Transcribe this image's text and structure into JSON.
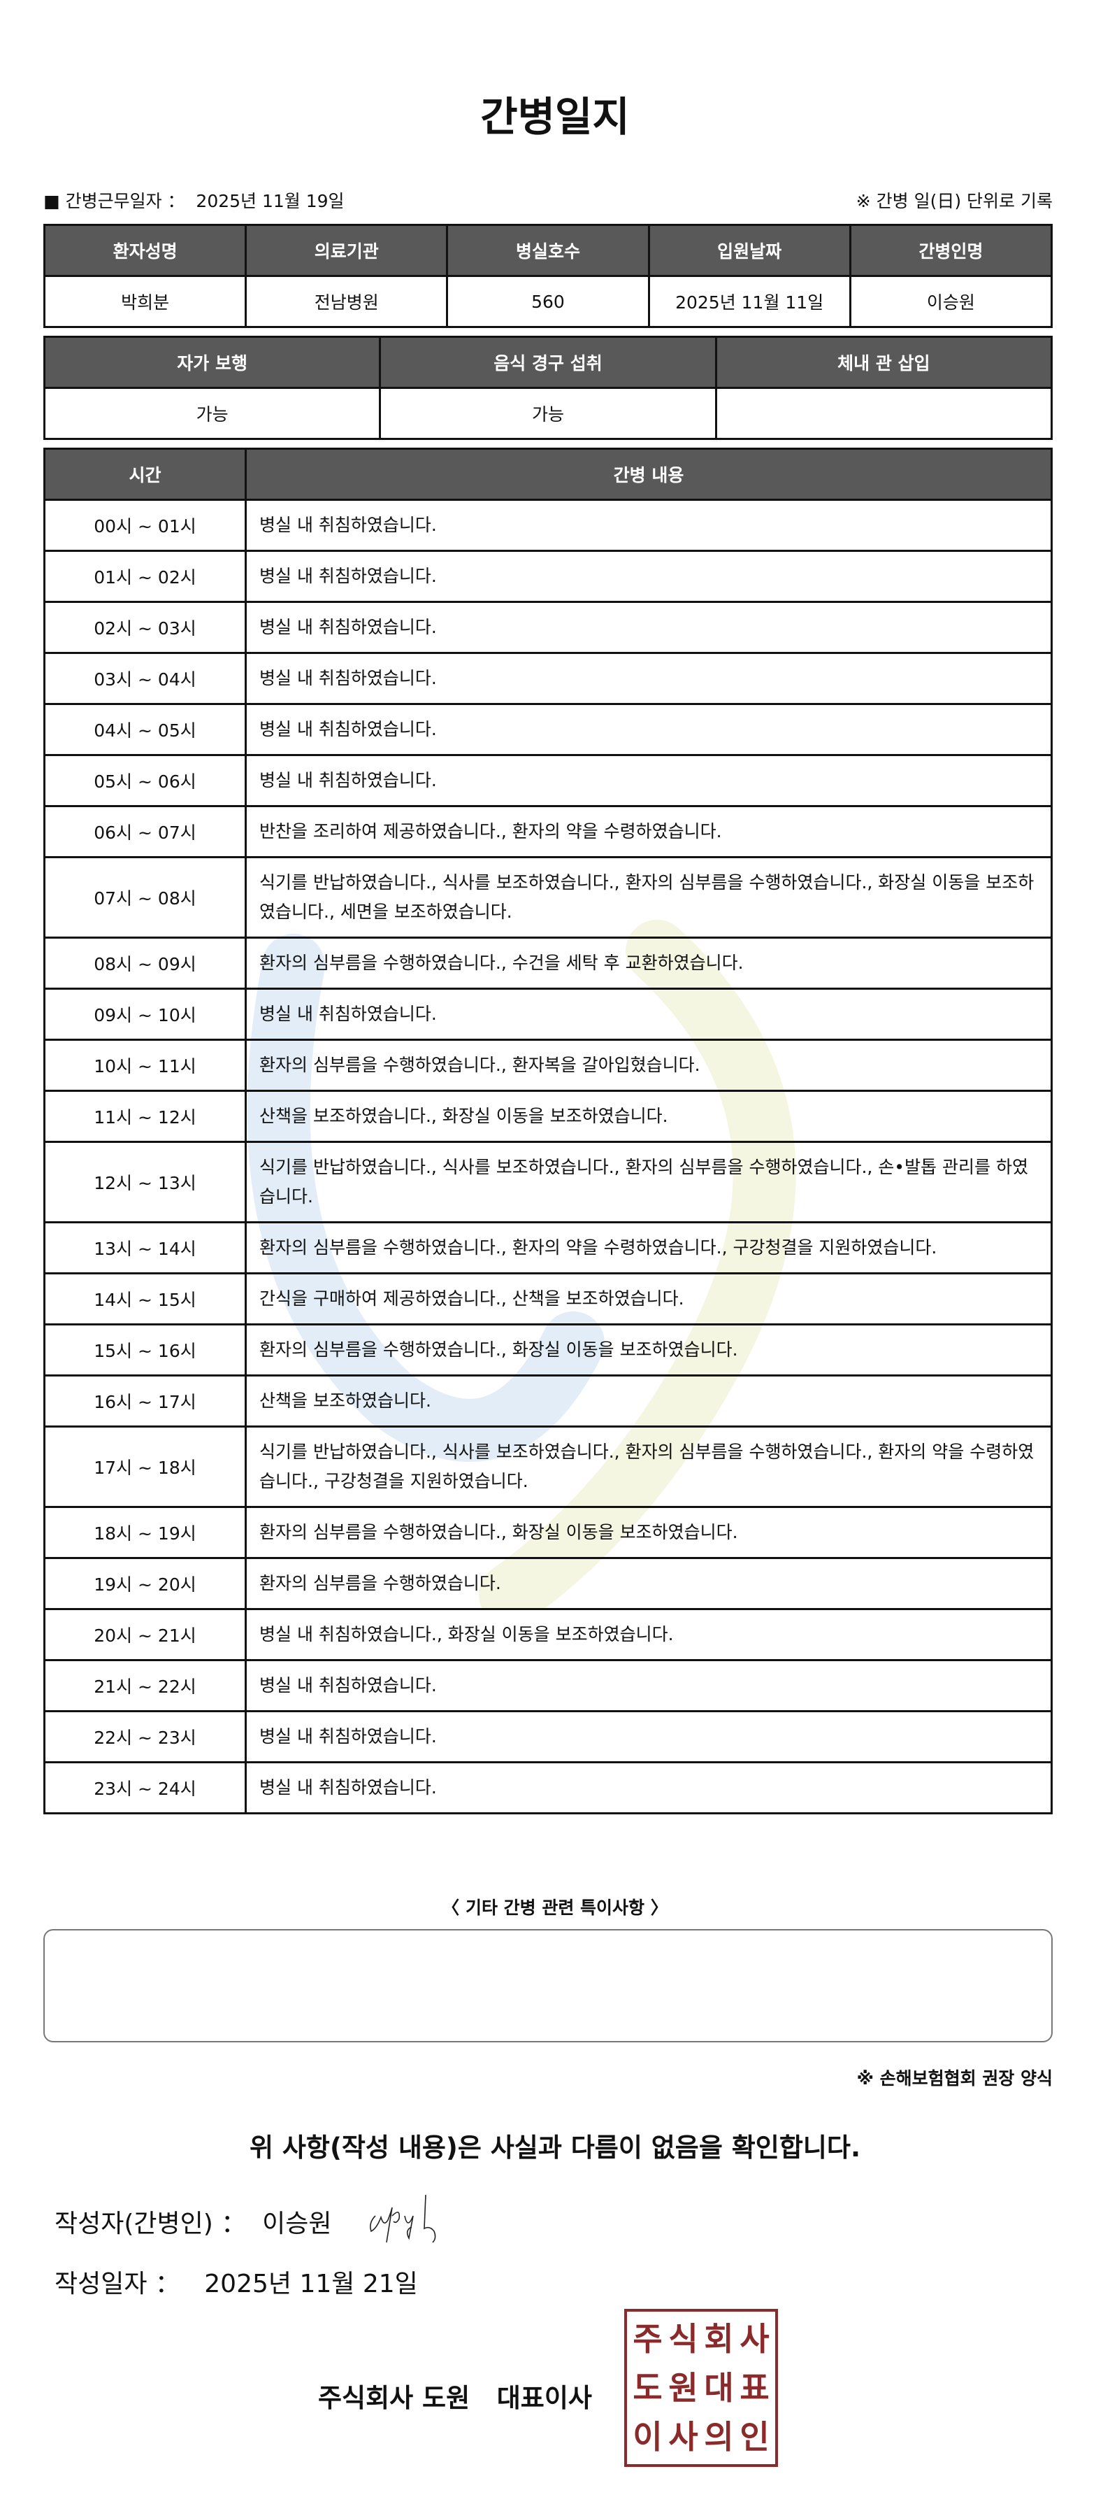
{
  "title": "간병일지",
  "work_date_label": "■ 간병근무일자 ：",
  "work_date": "2025년 11월 19일",
  "record_note": "※ 간병 일(日) 단위로 기록",
  "info_table": {
    "headers": [
      "환자성명",
      "의료기관",
      "병실호수",
      "입원날짜",
      "간병인명"
    ],
    "values": [
      "박희분",
      "전남병원",
      "560",
      "2025년 11월 11일",
      "이승원"
    ]
  },
  "status_table": {
    "headers": [
      "자가 보행",
      "음식 경구 섭취",
      "체내 관 삽입"
    ],
    "values": [
      "가능",
      "가능",
      ""
    ]
  },
  "log_table": {
    "headers": [
      "시간",
      "간병 내용"
    ],
    "rows": [
      {
        "time": "00시 ~ 01시",
        "content": "병실 내 취침하였습니다."
      },
      {
        "time": "01시 ~ 02시",
        "content": "병실 내 취침하였습니다."
      },
      {
        "time": "02시 ~ 03시",
        "content": "병실 내 취침하였습니다."
      },
      {
        "time": "03시 ~ 04시",
        "content": "병실 내 취침하였습니다."
      },
      {
        "time": "04시 ~ 05시",
        "content": "병실 내 취침하였습니다."
      },
      {
        "time": "05시 ~ 06시",
        "content": "병실 내 취침하였습니다."
      },
      {
        "time": "06시 ~ 07시",
        "content": "반찬을 조리하여 제공하였습니다., 환자의 약을 수령하였습니다."
      },
      {
        "time": "07시 ~ 08시",
        "content": "식기를 반납하였습니다., 식사를 보조하였습니다., 환자의 심부름을 수행하였습니다., 화장실 이동을 보조하였습니다., 세면을 보조하였습니다."
      },
      {
        "time": "08시 ~ 09시",
        "content": "환자의 심부름을 수행하였습니다., 수건을 세탁 후 교환하였습니다."
      },
      {
        "time": "09시 ~ 10시",
        "content": "병실 내 취침하였습니다."
      },
      {
        "time": "10시 ~ 11시",
        "content": "환자의 심부름을 수행하였습니다., 환자복을 갈아입혔습니다."
      },
      {
        "time": "11시 ~ 12시",
        "content": "산책을 보조하였습니다., 화장실 이동을 보조하였습니다."
      },
      {
        "time": "12시 ~ 13시",
        "content": "식기를 반납하였습니다., 식사를 보조하였습니다., 환자의 심부름을 수행하였습니다., 손•발톱 관리를 하였습니다."
      },
      {
        "time": "13시 ~ 14시",
        "content": "환자의 심부름을 수행하였습니다., 환자의 약을 수령하였습니다., 구강청결을 지원하였습니다."
      },
      {
        "time": "14시 ~ 15시",
        "content": "간식을 구매하여 제공하였습니다., 산책을 보조하였습니다."
      },
      {
        "time": "15시 ~ 16시",
        "content": "환자의 심부름을 수행하였습니다., 화장실 이동을 보조하였습니다."
      },
      {
        "time": "16시 ~ 17시",
        "content": "산책을 보조하였습니다."
      },
      {
        "time": "17시 ~ 18시",
        "content": "식기를 반납하였습니다., 식사를 보조하였습니다., 환자의 심부름을 수행하였습니다., 환자의 약을 수령하였습니다., 구강청결을 지원하였습니다."
      },
      {
        "time": "18시 ~ 19시",
        "content": "환자의 심부름을 수행하였습니다., 화장실 이동을 보조하였습니다."
      },
      {
        "time": "19시 ~ 20시",
        "content": "환자의 심부름을 수행하였습니다."
      },
      {
        "time": "20시 ~ 21시",
        "content": "병실 내 취침하였습니다., 화장실 이동을 보조하였습니다."
      },
      {
        "time": "21시 ~ 22시",
        "content": "병실 내 취침하였습니다."
      },
      {
        "time": "22시 ~ 23시",
        "content": "병실 내 취침하였습니다."
      },
      {
        "time": "23시 ~ 24시",
        "content": "병실 내 취침하였습니다."
      }
    ]
  },
  "notes_label": "〈 기타 간병 관련 특이사항 〉",
  "notes_value": "",
  "form_note": "※ 손해보험협회 권장 양식",
  "confirmation": "위 사항(작성 내용)은 사실과 다름이 없음을 확인합니다.",
  "writer_label": "작성자(간병인) ：",
  "writer_name": "이승원",
  "written_date_label": "작성일자 ：",
  "written_date": "2025년 11월 21일",
  "company": "주식회사 도원   대표이사",
  "seal_text": "주식회사도원대표이사의인",
  "colors": {
    "header_bg": "#595959",
    "seal": "#8b2a2a",
    "watermark_blue": "#dbe9f5",
    "watermark_yellow": "#f4f5de"
  }
}
